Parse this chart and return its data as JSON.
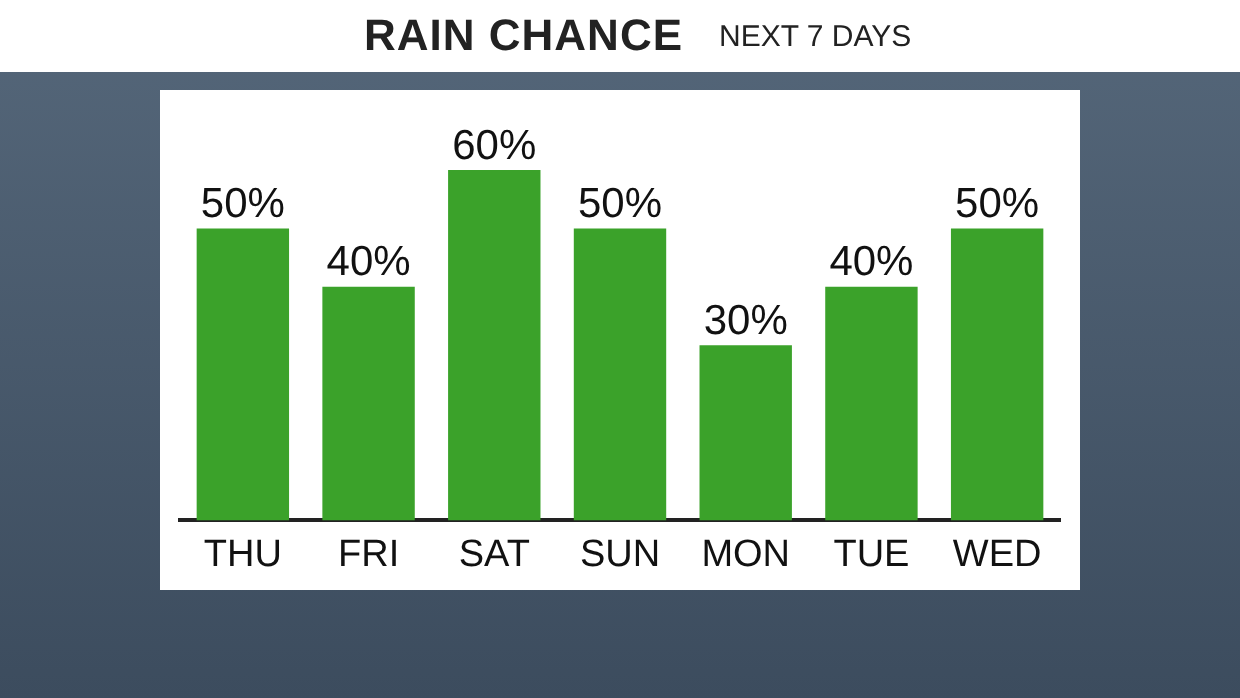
{
  "chart_data": {
    "type": "bar",
    "title": "RAIN CHANCE",
    "subtitle": "NEXT 7 DAYS",
    "categories": [
      "THU",
      "FRI",
      "SAT",
      "SUN",
      "MON",
      "TUE",
      "WED"
    ],
    "values": [
      50,
      40,
      60,
      50,
      30,
      40,
      50
    ],
    "value_labels": [
      "50%",
      "40%",
      "60%",
      "50%",
      "30%",
      "40%",
      "50%"
    ],
    "color": "#3ba22a",
    "grid": false,
    "legend": false
  }
}
